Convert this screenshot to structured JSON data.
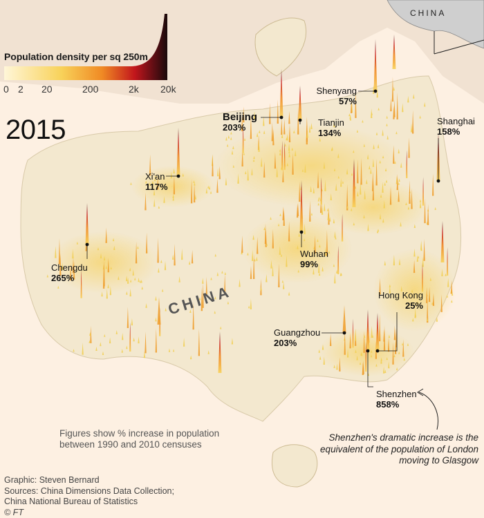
{
  "legend": {
    "title": "Population density per sq 250m",
    "ticks": [
      "0",
      "2",
      "20",
      "200",
      "2k",
      "20k"
    ],
    "colors": [
      "#fdf3d0",
      "#f8d25a",
      "#f08a24",
      "#c2161c",
      "#5c0e14",
      "#1a0a0a"
    ]
  },
  "year": "2015",
  "country_label": "CHINA",
  "inset_label": "CHINA",
  "cities": [
    {
      "name": "Beijing",
      "pct": "203%",
      "big": true
    },
    {
      "name": "Tianjin",
      "pct": "134%"
    },
    {
      "name": "Shenyang",
      "pct": "57%"
    },
    {
      "name": "Shanghai",
      "pct": "158%"
    },
    {
      "name": "Xi'an",
      "pct": "117%"
    },
    {
      "name": "Wuhan",
      "pct": "99%"
    },
    {
      "name": "Chengdu",
      "pct": "265%"
    },
    {
      "name": "Hong Kong",
      "pct": "25%"
    },
    {
      "name": "Guangzhou",
      "pct": "203%"
    },
    {
      "name": "Shenzhen",
      "pct": "858%"
    }
  ],
  "note": "Figures show % increase in population between 1990 and 2010 censuses",
  "shenzhen_note": "Shenzhen's dramatic increase is the equivalent of the population of London moving to Glasgow",
  "credits": {
    "graphic": "Graphic: Steven Bernard",
    "sources1": "Sources: China Dimensions Data Collection;",
    "sources2": "China National Bureau of Statistics",
    "copyright": "© FT"
  },
  "colors": {
    "background": "#fdf0e2",
    "land": "#f3e8cf",
    "spike_low": "#f8d25a",
    "spike_mid": "#f08a24",
    "spike_high": "#c2161c",
    "spike_top": "#3a0a0e"
  }
}
